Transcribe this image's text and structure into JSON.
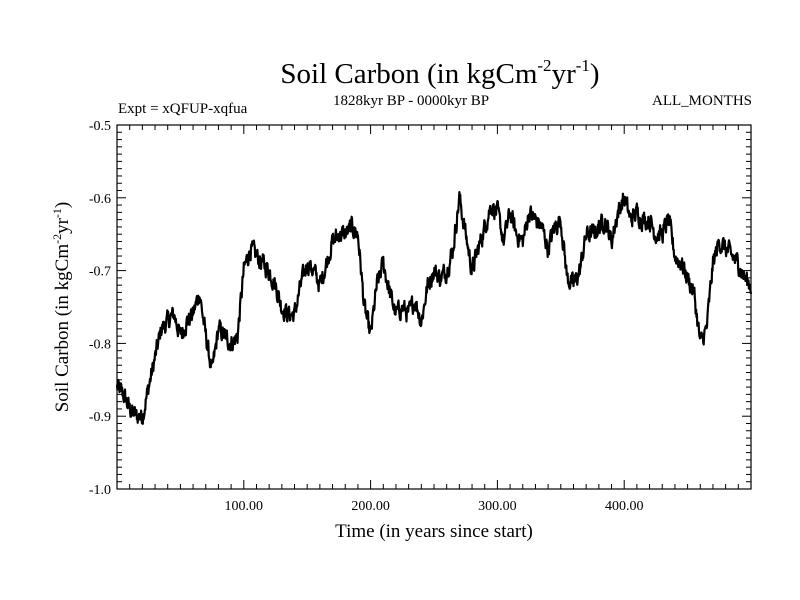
{
  "chart_data": {
    "type": "line",
    "title": "Soil Carbon (in kgCm",
    "title_sup1": "-2",
    "title_mid": "yr",
    "title_sup2": "-1",
    "title_end": ")",
    "subtitle_left": "Expt = xQFUP-xqfua",
    "subtitle_center": "1828kyr BP - 0000kyr BP",
    "subtitle_right": "ALL_MONTHS",
    "xlabel": "Time (in years since start)",
    "ylabel_parts": [
      "Soil Carbon (in kgCm",
      "-2",
      "yr",
      "-1",
      ")"
    ],
    "xlim": [
      0,
      500
    ],
    "ylim": [
      -1.0,
      -0.5
    ],
    "x_ticks": [
      100,
      200,
      300,
      400
    ],
    "x_tick_labels": [
      "100.00",
      "200.00",
      "300.00",
      "400.00"
    ],
    "y_ticks": [
      -0.5,
      -0.6,
      -0.7,
      -0.8,
      -0.9,
      -1.0
    ],
    "y_tick_labels": [
      "-0.5",
      "-0.6",
      "-0.7",
      "-0.8",
      "-0.9",
      "-1.0"
    ],
    "series": [
      {
        "name": "Soil Carbon",
        "x": [
          0,
          5,
          10,
          15,
          20,
          25,
          30,
          35,
          40,
          45,
          50,
          55,
          60,
          65,
          70,
          75,
          80,
          85,
          90,
          95,
          100,
          105,
          110,
          115,
          120,
          125,
          130,
          135,
          140,
          145,
          150,
          155,
          160,
          165,
          170,
          175,
          180,
          185,
          190,
          195,
          200,
          205,
          210,
          215,
          220,
          225,
          230,
          235,
          240,
          245,
          250,
          255,
          260,
          265,
          270,
          275,
          280,
          285,
          290,
          295,
          300,
          305,
          310,
          315,
          320,
          325,
          330,
          335,
          340,
          345,
          350,
          355,
          360,
          365,
          370,
          375,
          380,
          385,
          390,
          395,
          400,
          405,
          410,
          415,
          420,
          425,
          430,
          435,
          440,
          445,
          450,
          455,
          460,
          465,
          470,
          475,
          480,
          485,
          490,
          495,
          500
        ],
        "values": [
          -0.86,
          -0.87,
          -0.89,
          -0.9,
          -0.9,
          -0.86,
          -0.82,
          -0.78,
          -0.77,
          -0.76,
          -0.79,
          -0.77,
          -0.76,
          -0.73,
          -0.79,
          -0.84,
          -0.78,
          -0.79,
          -0.8,
          -0.79,
          -0.7,
          -0.67,
          -0.68,
          -0.69,
          -0.7,
          -0.72,
          -0.75,
          -0.76,
          -0.76,
          -0.72,
          -0.69,
          -0.7,
          -0.72,
          -0.69,
          -0.66,
          -0.65,
          -0.65,
          -0.64,
          -0.65,
          -0.75,
          -0.79,
          -0.72,
          -0.69,
          -0.73,
          -0.76,
          -0.75,
          -0.76,
          -0.74,
          -0.77,
          -0.72,
          -0.7,
          -0.71,
          -0.7,
          -0.67,
          -0.6,
          -0.65,
          -0.7,
          -0.67,
          -0.64,
          -0.61,
          -0.62,
          -0.66,
          -0.62,
          -0.65,
          -0.66,
          -0.62,
          -0.63,
          -0.64,
          -0.67,
          -0.64,
          -0.63,
          -0.71,
          -0.72,
          -0.7,
          -0.65,
          -0.65,
          -0.64,
          -0.63,
          -0.66,
          -0.62,
          -0.6,
          -0.63,
          -0.62,
          -0.63,
          -0.63,
          -0.65,
          -0.65,
          -0.63,
          -0.68,
          -0.69,
          -0.71,
          -0.73,
          -0.8,
          -0.78,
          -0.69,
          -0.66,
          -0.67,
          -0.68,
          -0.69,
          -0.71,
          -0.72
        ]
      }
    ]
  }
}
